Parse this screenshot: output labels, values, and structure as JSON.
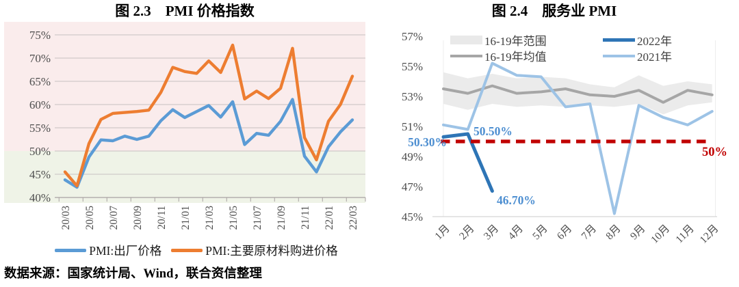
{
  "page": {
    "source_note": "数据来源：国家统计局、Wind，联合资信整理"
  },
  "chart_data": [
    {
      "type": "line",
      "title": "图 2.3　PMI 价格指数",
      "categories": [
        "20/03",
        "20/04",
        "20/05",
        "20/06",
        "20/07",
        "20/08",
        "20/09",
        "20/10",
        "20/11",
        "20/12",
        "21/01",
        "21/02",
        "21/03",
        "21/04",
        "21/05",
        "21/06",
        "21/07",
        "21/08",
        "21/09",
        "21/10",
        "21/11",
        "21/12",
        "22/01",
        "22/02",
        "22/03"
      ],
      "x_tick_labels": [
        "20/03",
        "20/05",
        "20/07",
        "20/09",
        "20/11",
        "21/01",
        "21/03",
        "21/05",
        "21/07",
        "21/09",
        "21/11",
        "22/01",
        "22/03"
      ],
      "yticks": [
        75,
        70,
        65,
        60,
        55,
        50,
        45,
        40
      ],
      "ytick_labels": [
        "75%",
        "70%",
        "65%",
        "60%",
        "55%",
        "50%",
        "45%",
        "40%"
      ],
      "ylim": [
        40,
        75
      ],
      "grid": true,
      "zones": [
        {
          "name": "above-50",
          "boundary": 50,
          "color": "#FAECEC"
        },
        {
          "name": "below-50",
          "boundary": 50,
          "color": "#EFF3E7"
        }
      ],
      "series": [
        {
          "name": "PMI:出厂价格",
          "color": "#5B9BD5",
          "values": [
            43.8,
            42.2,
            48.7,
            52.4,
            52.2,
            53.2,
            52.5,
            53.2,
            56.5,
            58.9,
            57.2,
            58.5,
            59.8,
            57.3,
            60.6,
            51.4,
            53.8,
            53.4,
            56.4,
            61.1,
            48.9,
            45.5,
            50.9,
            54.1,
            56.7
          ]
        },
        {
          "name": "PMI:主要原材料购进价格",
          "color": "#ED7D31",
          "values": [
            45.5,
            42.5,
            51.6,
            56.8,
            58.1,
            58.3,
            58.5,
            58.8,
            62.6,
            68,
            67.1,
            66.7,
            69.4,
            66.9,
            72.8,
            61.2,
            62.9,
            61.3,
            63.5,
            72.1,
            52.9,
            48.1,
            56.4,
            60,
            66.1
          ]
        }
      ]
    },
    {
      "type": "line",
      "title": "图 2.4　服务业 PMI",
      "categories": [
        "1月",
        "2月",
        "3月",
        "4月",
        "5月",
        "6月",
        "7月",
        "8月",
        "9月",
        "10月",
        "11月",
        "12月"
      ],
      "yticks": [
        57,
        55,
        53,
        51,
        49,
        47,
        45
      ],
      "ytick_labels": [
        "57%",
        "55%",
        "53%",
        "51%",
        "49%",
        "47%",
        "45%"
      ],
      "ylim": [
        45,
        57
      ],
      "grid": false,
      "legend_position": "top-inside",
      "series": [
        {
          "name": "16-19年范围",
          "kind": "band",
          "color": "#E9E9E9",
          "upper": [
            54.6,
            54.2,
            54.5,
            54.2,
            54.3,
            54.2,
            53.8,
            53.6,
            54.4,
            53.7,
            54,
            53.8
          ],
          "lower": [
            52.5,
            52.1,
            52.5,
            52.3,
            52.4,
            52.3,
            52.4,
            52.3,
            52.5,
            51.8,
            52.4,
            52.6
          ]
        },
        {
          "name": "16-19年均值",
          "kind": "line",
          "color": "#A6A6A6",
          "values": [
            53.5,
            53.2,
            53.7,
            53.2,
            53.3,
            53.5,
            53.1,
            53,
            53.4,
            52.6,
            53.4,
            53.1
          ]
        },
        {
          "name": "2022年",
          "kind": "line",
          "color": "#2E75B6",
          "values": [
            50.3,
            50.5,
            46.7
          ]
        },
        {
          "name": "2021年",
          "kind": "line",
          "color": "#9DC3E6",
          "values": [
            51.1,
            50.8,
            55.2,
            54.4,
            54.3,
            52.3,
            52.5,
            45.2,
            52.4,
            51.6,
            51.1,
            52
          ]
        }
      ],
      "reference_line": {
        "value": 50,
        "label": "50%",
        "color": "#C00000",
        "style": "dashed"
      },
      "annotations": [
        {
          "text": "50.30%",
          "series": "2022年",
          "month": "1月",
          "color": "#4E8FD1"
        },
        {
          "text": "50.50%",
          "series": "2022年",
          "month": "2月",
          "color": "#4E8FD1"
        },
        {
          "text": "46.70%",
          "series": "2022年",
          "month": "3月",
          "color": "#4E8FD1"
        }
      ]
    }
  ]
}
